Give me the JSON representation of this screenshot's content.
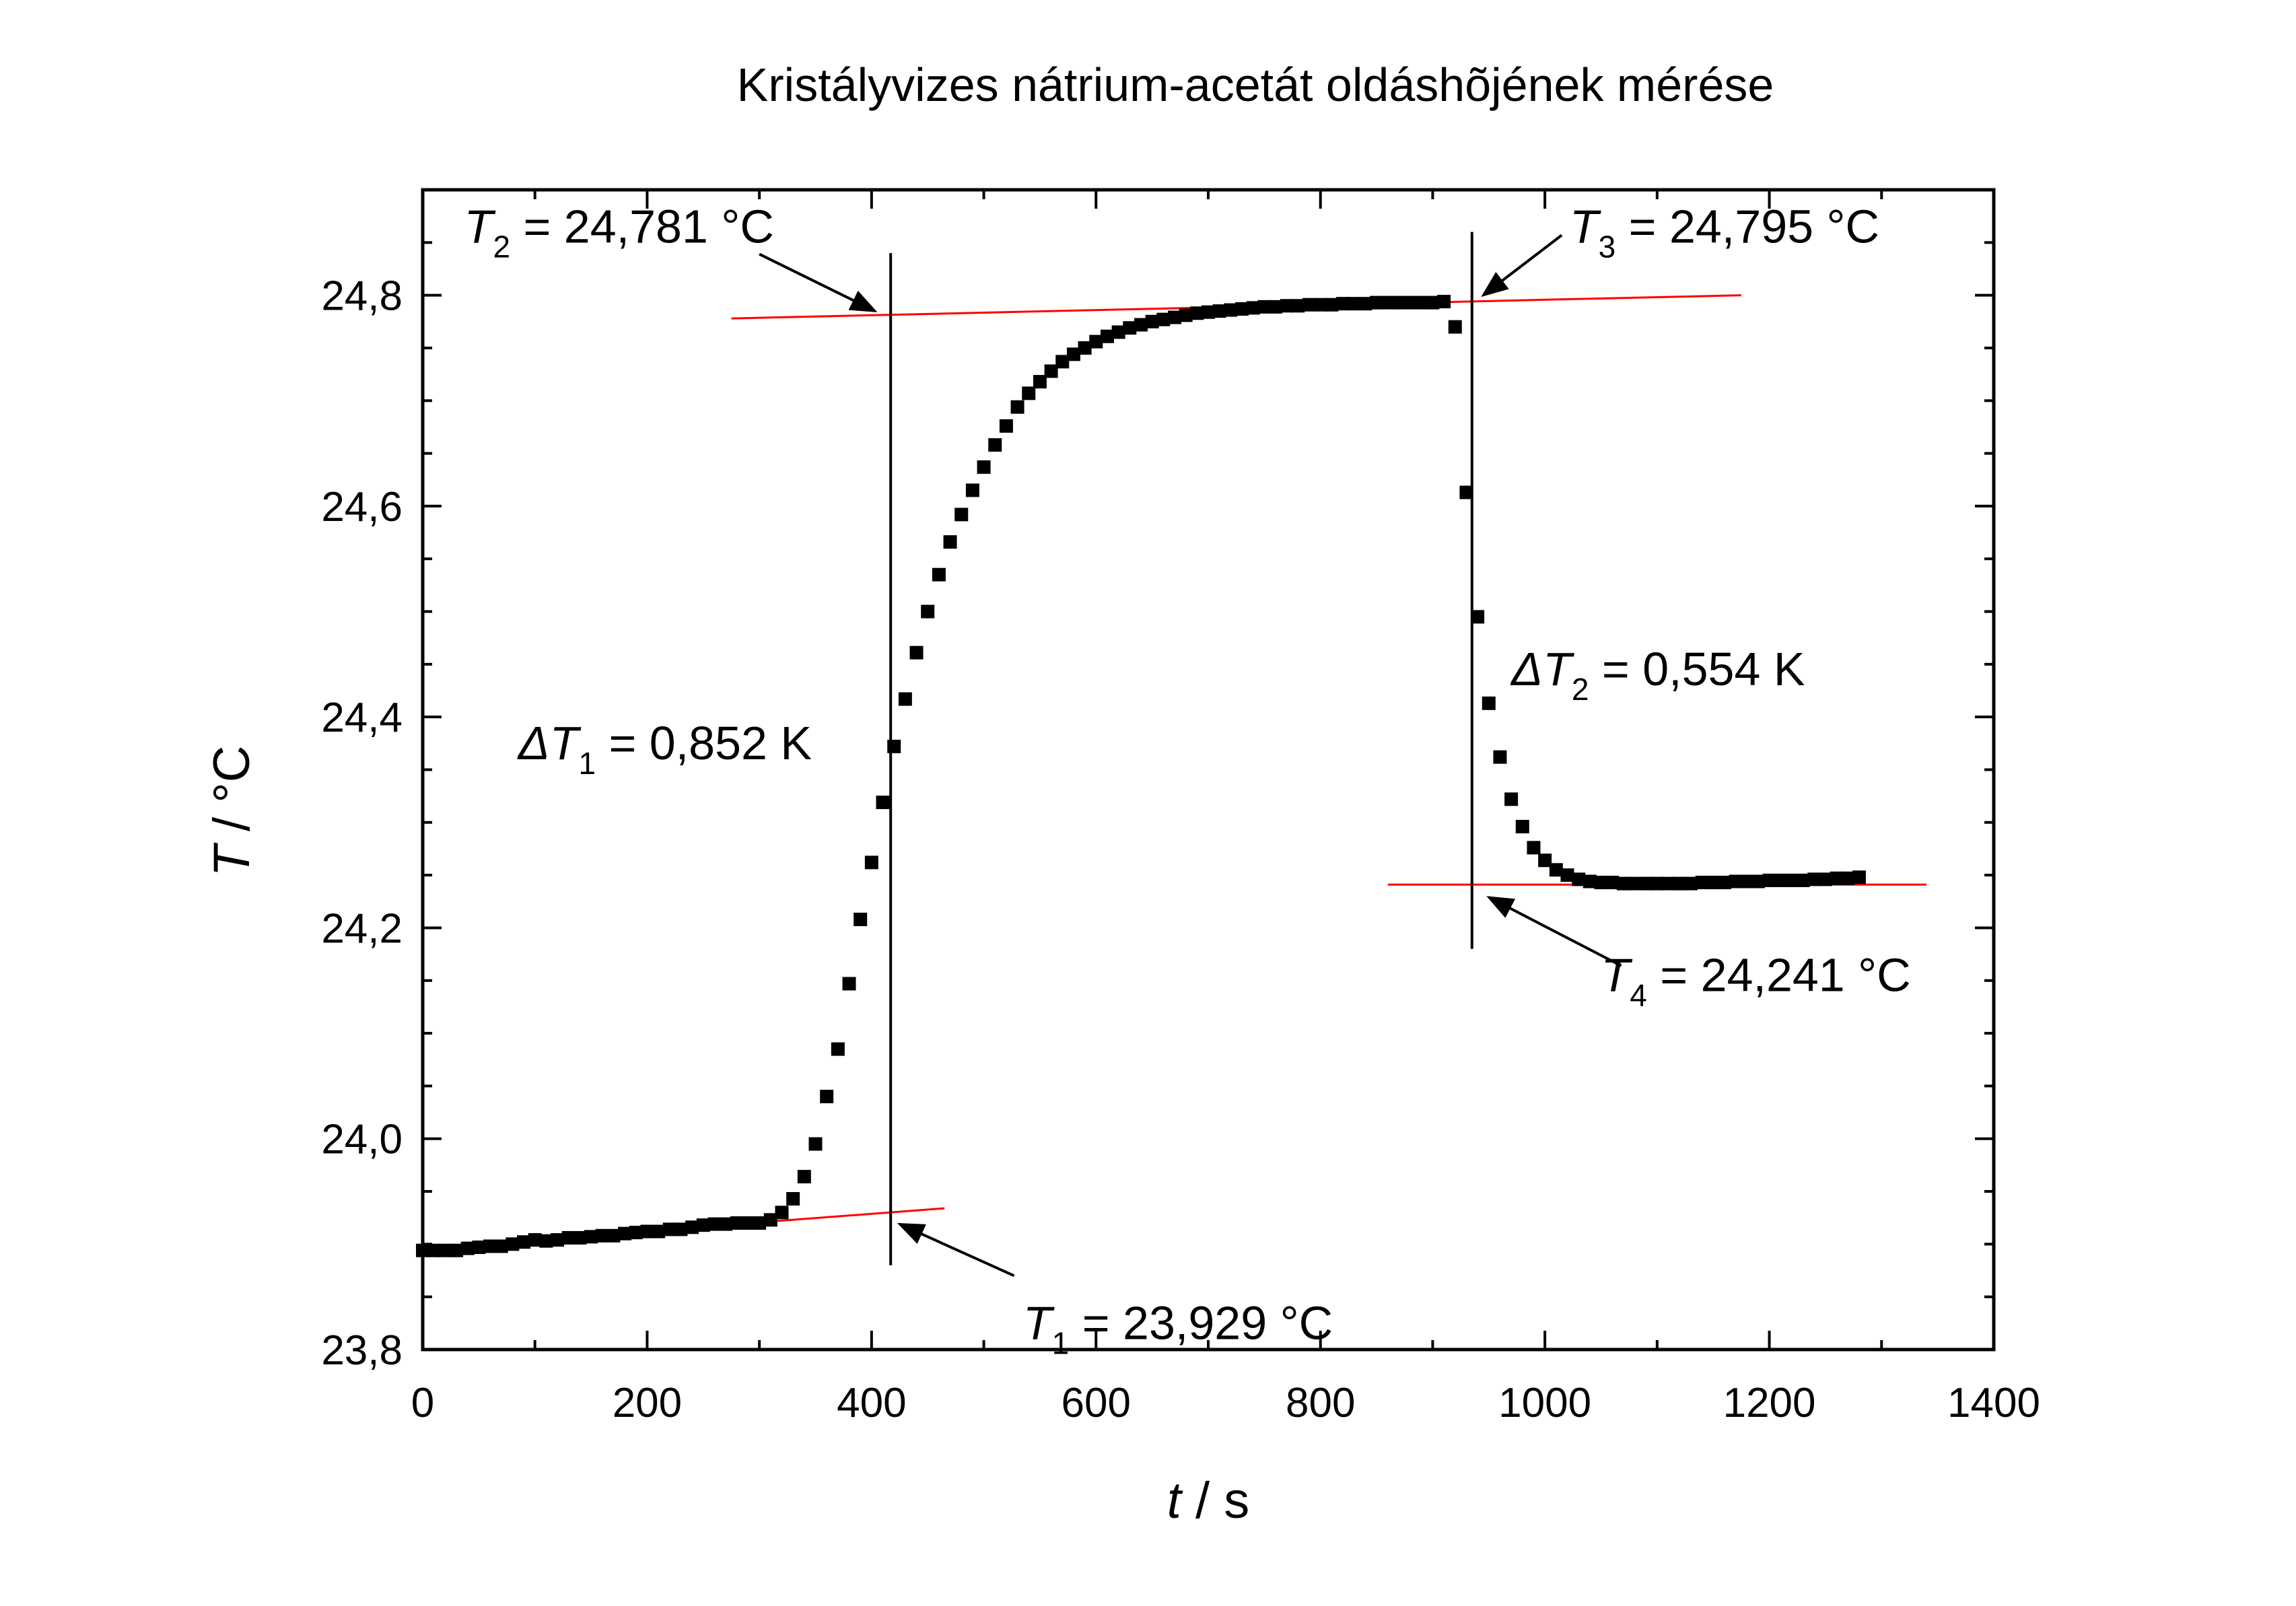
{
  "chart_data": {
    "type": "scatter",
    "title": "Kristályvizes nátrium-acetát oldáshõjének mérése",
    "xlabel": {
      "symbol": "t",
      "rest": " / s"
    },
    "ylabel": {
      "symbol": "T",
      "rest": " / °C"
    },
    "xlim": [
      0,
      1400
    ],
    "ylim": [
      23.8,
      24.9
    ],
    "x_ticks": [
      0,
      200,
      400,
      600,
      800,
      1000,
      1200,
      1400
    ],
    "x_tick_labels": [
      "0",
      "200",
      "400",
      "600",
      "800",
      "1000",
      "1200",
      "1400"
    ],
    "y_ticks": [
      23.8,
      24.0,
      24.2,
      24.4,
      24.6,
      24.8
    ],
    "y_tick_labels": [
      "23,8",
      "24,0",
      "24,2",
      "24,4",
      "24,6",
      "24,8"
    ],
    "grid": false,
    "series": [
      {
        "marker": "square",
        "color": "#000000",
        "x": [
          0,
          10,
          20,
          30,
          40,
          50,
          60,
          70,
          80,
          90,
          100,
          110,
          120,
          130,
          140,
          150,
          160,
          170,
          180,
          190,
          200,
          210,
          220,
          230,
          240,
          250,
          260,
          270,
          280,
          290,
          300,
          310,
          320,
          330,
          340,
          350,
          360,
          370,
          380,
          390,
          400,
          410,
          420,
          430,
          440,
          450,
          460,
          470,
          480,
          490,
          500,
          510,
          520,
          530,
          540,
          550,
          560,
          570,
          580,
          590,
          600,
          610,
          620,
          630,
          640,
          650,
          660,
          670,
          680,
          690,
          700,
          710,
          720,
          730,
          740,
          750,
          760,
          770,
          780,
          790,
          800,
          810,
          820,
          830,
          840,
          850,
          860,
          870,
          880,
          890,
          900,
          910,
          920,
          930,
          940,
          950,
          960,
          970,
          980,
          990,
          1000,
          1010,
          1020,
          1030,
          1040,
          1050,
          1060,
          1070,
          1080,
          1090,
          1100,
          1110,
          1120,
          1130,
          1140,
          1150,
          1160,
          1170,
          1180,
          1190,
          1200,
          1210,
          1220,
          1230,
          1240,
          1250,
          1260,
          1270,
          1280
        ],
        "y": [
          23.894,
          23.894,
          23.894,
          23.894,
          23.896,
          23.897,
          23.898,
          23.898,
          23.9,
          23.902,
          23.904,
          23.903,
          23.904,
          23.906,
          23.906,
          23.907,
          23.908,
          23.908,
          23.91,
          23.911,
          23.912,
          23.912,
          23.914,
          23.914,
          23.916,
          23.918,
          23.919,
          23.919,
          23.92,
          23.92,
          23.92,
          23.923,
          23.93,
          23.943,
          23.964,
          23.995,
          24.04,
          24.085,
          24.147,
          24.208,
          24.262,
          24.319,
          24.372,
          24.417,
          24.461,
          24.5,
          24.535,
          24.566,
          24.592,
          24.615,
          24.637,
          24.658,
          24.676,
          24.694,
          24.707,
          24.718,
          24.728,
          24.737,
          24.744,
          24.75,
          24.756,
          24.761,
          24.765,
          24.769,
          24.772,
          24.775,
          24.777,
          24.779,
          24.781,
          24.783,
          24.784,
          24.785,
          24.786,
          24.787,
          24.788,
          24.789,
          24.789,
          24.79,
          24.79,
          24.791,
          24.791,
          24.791,
          24.792,
          24.792,
          24.792,
          24.793,
          24.793,
          24.793,
          24.793,
          24.793,
          24.793,
          24.794,
          24.77,
          24.613,
          24.495,
          24.413,
          24.362,
          24.322,
          24.296,
          24.276,
          24.264,
          24.255,
          24.25,
          24.246,
          24.244,
          24.243,
          24.243,
          24.242,
          24.242,
          24.242,
          24.242,
          24.242,
          24.242,
          24.242,
          24.243,
          24.243,
          24.243,
          24.244,
          24.244,
          24.244,
          24.245,
          24.245,
          24.245,
          24.245,
          24.246,
          24.246,
          24.247,
          24.247,
          24.248
        ]
      }
    ],
    "fit_lines": [
      {
        "color": "#ff0000",
        "x": [
          280,
          465
        ],
        "y": [
          23.919,
          23.934
        ]
      },
      {
        "color": "#ff0000",
        "x": [
          275,
          1175
        ],
        "y": [
          24.778,
          24.8
        ]
      },
      {
        "color": "#ff0000",
        "x": [
          860,
          1340
        ],
        "y": [
          24.241,
          24.241
        ]
      }
    ],
    "vertical_lines": [
      {
        "color": "#000000",
        "x": 417,
        "y": [
          23.88,
          24.84
        ]
      },
      {
        "color": "#000000",
        "x": 935,
        "y": [
          24.18,
          24.86
        ]
      }
    ],
    "annotations": [
      {
        "id": "t2",
        "symbol": "T",
        "sub": "2",
        "rest": " = 24,781 °C",
        "x": 37,
        "y": 24.85,
        "arrow_from": [
          300,
          24.839
        ],
        "arrow_to": [
          403,
          24.785
        ]
      },
      {
        "id": "t3",
        "symbol": "T",
        "sub": "3",
        "rest": " = 24,795 °C",
        "x": 1022,
        "y": 24.85,
        "arrow_from": [
          1015,
          24.857
        ],
        "arrow_to": [
          945,
          24.8
        ]
      },
      {
        "id": "dt2",
        "symbol": "ΔT",
        "sub": "2",
        "rest": " = 0,554 K",
        "x": 970,
        "y": 24.43,
        "arrow_from": null,
        "arrow_to": null
      },
      {
        "id": "dt1",
        "symbol": "ΔT",
        "sub": "1",
        "rest": " = 0,852 K",
        "x": 85,
        "y": 24.36,
        "arrow_from": null,
        "arrow_to": null
      },
      {
        "id": "t4",
        "symbol": "T",
        "sub": "4",
        "rest": " = 24,241 °C",
        "x": 1050,
        "y": 24.14,
        "arrow_from": [
          1068,
          24.164
        ],
        "arrow_to": [
          950,
          24.229
        ]
      },
      {
        "id": "t1",
        "symbol": "T",
        "sub": "1",
        "rest": " = 23,929 °C",
        "x": 535,
        "y": 23.81,
        "arrow_from": [
          527,
          23.87
        ],
        "arrow_to": [
          425,
          23.919
        ]
      }
    ]
  }
}
